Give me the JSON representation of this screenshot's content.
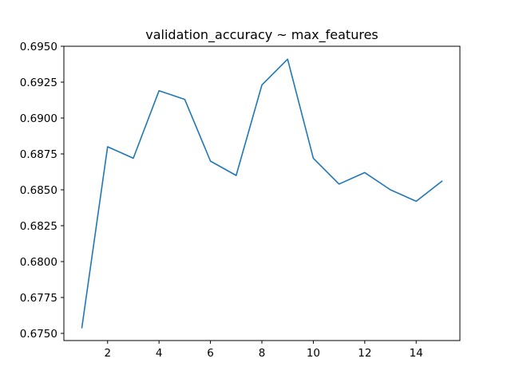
{
  "chart_data": {
    "type": "line",
    "title": "validation_accuracy ~ max_features",
    "xlabel": "",
    "ylabel": "",
    "x": [
      1,
      2,
      3,
      4,
      5,
      6,
      7,
      8,
      9,
      10,
      11,
      12,
      13,
      14,
      15
    ],
    "series": [
      {
        "values": [
          0.6754,
          0.688,
          0.6872,
          0.6919,
          0.6913,
          0.687,
          0.686,
          0.6923,
          0.6941,
          0.6872,
          0.6854,
          0.6862,
          0.685,
          0.6842,
          0.6856
        ],
        "color": "#1f77b4"
      }
    ],
    "xlim": [
      0.3,
      15.7
    ],
    "ylim": [
      0.6745,
      0.695
    ],
    "xticks": [
      2,
      4,
      6,
      8,
      10,
      12,
      14
    ],
    "xtick_labels": [
      "2",
      "4",
      "6",
      "8",
      "10",
      "12",
      "14"
    ],
    "yticks": [
      0.675,
      0.6775,
      0.68,
      0.6825,
      0.685,
      0.6875,
      0.69,
      0.6925,
      0.695
    ],
    "ytick_labels": [
      "0.6750",
      "0.6775",
      "0.6800",
      "0.6825",
      "0.6850",
      "0.6875",
      "0.6900",
      "0.6925",
      "0.6950"
    ],
    "grid": false,
    "legend": "none"
  }
}
